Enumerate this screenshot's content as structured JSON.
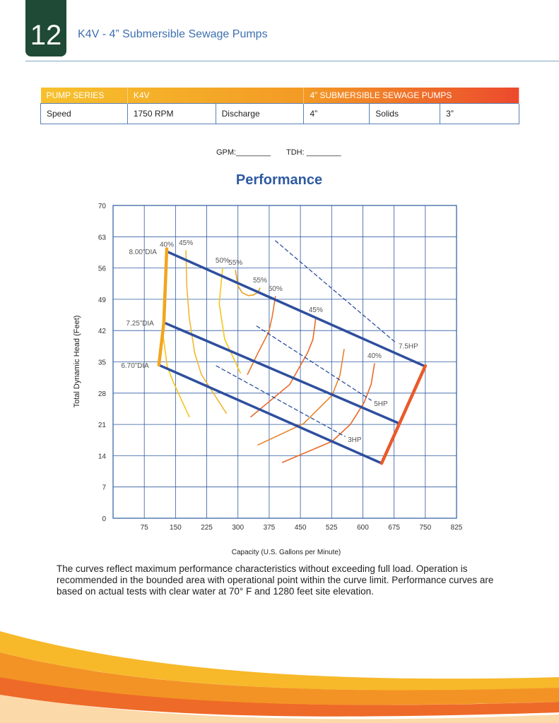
{
  "header": {
    "page_number": "12",
    "title": "K4V - 4” Submersible Sewage Pumps"
  },
  "table": {
    "header_row": [
      "PUMP SERIES",
      "K4V",
      "4” SUBMERSIBLE SEWAGE PUMPS"
    ],
    "rows": [
      [
        "Speed",
        "1750 RPM",
        "Discharge",
        "4”",
        "Solids",
        "3”"
      ]
    ]
  },
  "gpm_label": "GPM:________",
  "tdh_label": "TDH: ________",
  "chart_data": {
    "type": "line",
    "title": "Performance",
    "xlabel": "Capacity (U.S. Gallons per Minute)",
    "ylabel": "Total Dynamic Head (Feet)",
    "xlim": [
      0,
      825
    ],
    "xticks": [
      75,
      150,
      225,
      300,
      375,
      450,
      525,
      600,
      675,
      750,
      825
    ],
    "ylim": [
      0,
      70
    ],
    "yticks": [
      0,
      7,
      14,
      21,
      28,
      35,
      42,
      49,
      56,
      63,
      70
    ],
    "grid": true,
    "diameter_curves": [
      {
        "name": "8.00”DIA",
        "color": "#2e4f9e",
        "x": [
          129,
          747
        ],
        "y": [
          59.7,
          34.1
        ]
      },
      {
        "name": "7.25”DIA",
        "color": "#2e4f9e",
        "x": [
          122,
          688
        ],
        "y": [
          43.8,
          21.2
        ]
      },
      {
        "name": "6.70”DIA",
        "color": "#2e4f9e",
        "x": [
          110,
          645
        ],
        "y": [
          34.3,
          12.3
        ]
      }
    ],
    "hp_lines": [
      {
        "name": "7.5HP",
        "color": "#2e4f9e",
        "dashed": true,
        "x": [
          390,
          679
        ],
        "y": [
          62.1,
          39.3
        ]
      },
      {
        "name": "5HP",
        "color": "#2e4f9e",
        "dashed": true,
        "x": [
          345,
          620
        ],
        "y": [
          43.0,
          26.4
        ]
      },
      {
        "name": "3HP",
        "color": "#2e4f9e",
        "dashed": true,
        "x": [
          248,
          557
        ],
        "y": [
          34.1,
          18.3
        ]
      }
    ],
    "limit_curves": [
      {
        "color": "#f2a51e",
        "x": [
          129,
          122,
          110
        ],
        "y": [
          60.3,
          43.8,
          34.3
        ]
      },
      {
        "color": "#ea5a2a",
        "x": [
          750,
          688,
          645
        ],
        "y": [
          34.1,
          21.2,
          12.3
        ]
      }
    ],
    "efficiency_curves": [
      {
        "name": "40%",
        "color": "#f5c518",
        "x": [
          129,
          122,
          119,
          130,
          144,
          183
        ],
        "y": [
          59.5,
          50,
          41.7,
          34,
          30.6,
          22.7
        ]
      },
      {
        "name": "45%",
        "color": "#f2b630",
        "x": [
          175,
          177,
          183,
          196,
          212,
          272
        ],
        "y": [
          59.9,
          52,
          44.9,
          37,
          32.2,
          23.5
        ]
      },
      {
        "name": "50%",
        "color": "#f5c518",
        "x": [
          263,
          255,
          268,
          306
        ],
        "y": [
          55.9,
          48,
          40.1,
          32.5
        ]
      },
      {
        "name": "55%",
        "color": "#e8a020",
        "x": [
          294,
          300,
          310,
          325,
          338
        ],
        "y": [
          55.5,
          52,
          50.5,
          49.8,
          50
        ]
      },
      {
        "name": "55%",
        "color": "#e8a020",
        "x": [
          338,
          348,
          353
        ],
        "y": [
          50,
          50.6,
          51.5
        ]
      },
      {
        "name": "50%",
        "color": "#e8742a",
        "x": [
          390,
          382,
          374,
          348,
          323
        ],
        "y": [
          49.6,
          45,
          41.7,
          37,
          32.2
        ]
      },
      {
        "name": "45%",
        "color": "#ea6a2a",
        "x": [
          487,
          480,
          467,
          424,
          331
        ],
        "y": [
          44.9,
          40,
          37,
          29.9,
          22.7
        ]
      },
      {
        "color": "#e8842a",
        "x": [
          555,
          545,
          526,
          458,
          348
        ],
        "y": [
          37.8,
          32,
          27.5,
          21.2,
          16.4
        ]
      },
      {
        "name": "40%",
        "color": "#e86a2a",
        "x": [
          628,
          620,
          603,
          570,
          526,
          407
        ],
        "y": [
          34.6,
          30,
          25.9,
          21,
          17.2,
          12.5
        ]
      }
    ]
  },
  "footer_note": "The curves reflect maximum performance characteristics without exceeding full load. Operation is recommended in the bounded area with operational point within the curve limit. Performance curves are based on actual tests with clear water at 70° F and 1280 feet site elevation."
}
